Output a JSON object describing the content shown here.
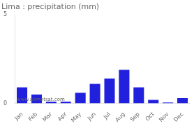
{
  "chart_data": {
    "type": "bar",
    "title": "Lima : precipitation (mm)",
    "categories": [
      "Jan",
      "Feb",
      "Mar",
      "Apr",
      "May",
      "Jun",
      "Jul",
      "Aug",
      "Sep",
      "Oct",
      "Nov",
      "Dec"
    ],
    "values": [
      0.9,
      0.5,
      0.1,
      0.1,
      0.6,
      1.1,
      1.4,
      1.9,
      0.9,
      0.2,
      0.05,
      0.3
    ],
    "color": "#2020dd",
    "ylim": [
      0,
      5
    ],
    "yticks": [
      0,
      5
    ],
    "grid": false,
    "annotation": "www.allmetsat.com"
  }
}
